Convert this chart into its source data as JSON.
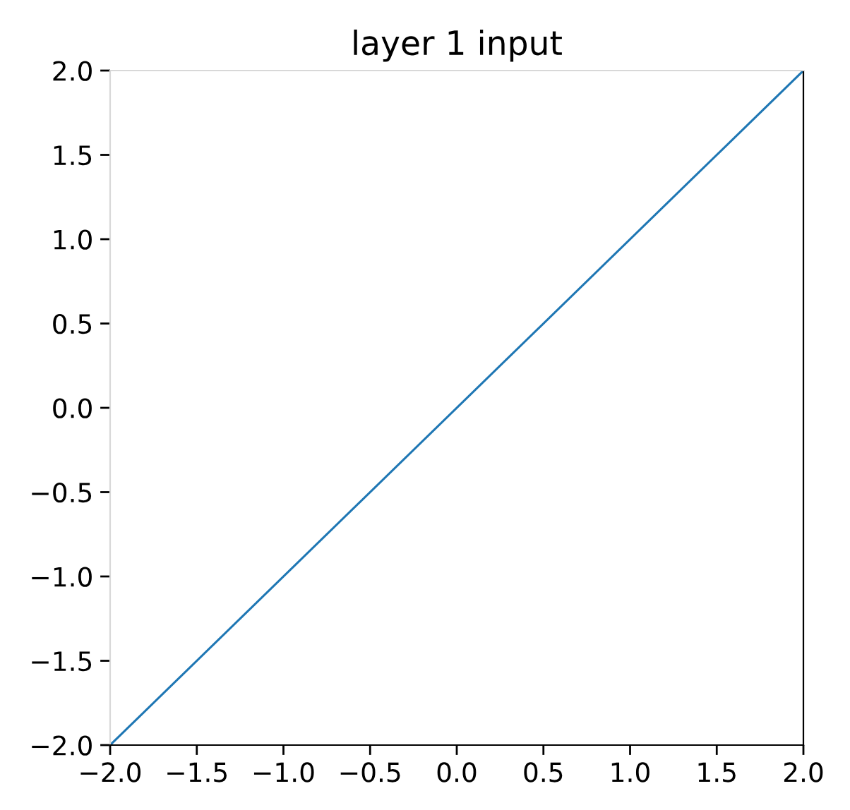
{
  "chart_data": {
    "type": "line",
    "title": "layer 1 input",
    "x": [
      -2.0,
      2.0
    ],
    "series": [
      {
        "color": "#1f77b4",
        "values": [
          -2.0,
          2.0
        ]
      }
    ],
    "xlim": [
      -2.0,
      2.0
    ],
    "ylim": [
      -2.0,
      2.0
    ],
    "xticks": [
      {
        "value": -2.0,
        "label": "−2.0"
      },
      {
        "value": -1.5,
        "label": "−1.5"
      },
      {
        "value": -1.0,
        "label": "−1.0"
      },
      {
        "value": -0.5,
        "label": "−0.5"
      },
      {
        "value": 0.0,
        "label": "0.0"
      },
      {
        "value": 0.5,
        "label": "0.5"
      },
      {
        "value": 1.0,
        "label": "1.0"
      },
      {
        "value": 1.5,
        "label": "1.5"
      },
      {
        "value": 2.0,
        "label": "2.0"
      }
    ],
    "yticks": [
      {
        "value": -2.0,
        "label": "−2.0"
      },
      {
        "value": -1.5,
        "label": "−1.5"
      },
      {
        "value": -1.0,
        "label": "−1.0"
      },
      {
        "value": -0.5,
        "label": "−0.5"
      },
      {
        "value": 0.0,
        "label": "0.0"
      },
      {
        "value": 0.5,
        "label": "0.5"
      },
      {
        "value": 1.0,
        "label": "1.0"
      },
      {
        "value": 1.5,
        "label": "1.5"
      },
      {
        "value": 2.0,
        "label": "2.0"
      }
    ],
    "grid": false,
    "marker": "none",
    "line_style": "solid"
  }
}
